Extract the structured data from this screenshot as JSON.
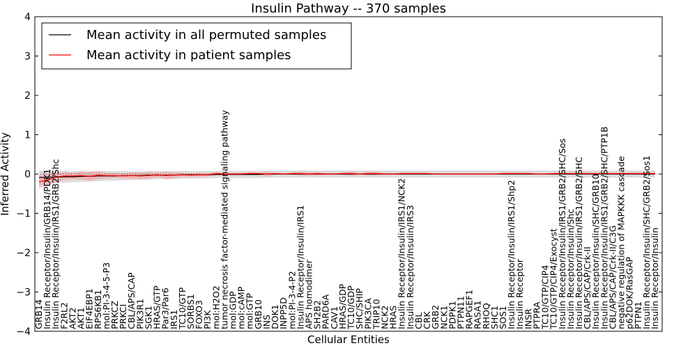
{
  "chart_data": {
    "type": "line",
    "title": "Insulin Pathway -- 370 samples",
    "xlabel": "Cellular Entities",
    "ylabel": "Inferred Activity",
    "ylim": [
      -4,
      4
    ],
    "yticks": [
      4,
      3,
      2,
      1,
      0,
      -1,
      -2,
      -3,
      -4
    ],
    "legend_position": "upper-left",
    "legend": [
      {
        "label": "Mean activity in all permuted samples",
        "color": "#000000"
      },
      {
        "label": "Mean activity in patient samples",
        "color": "#ff0000"
      }
    ],
    "categories": [
      "GRB14",
      "Insulin Receptor/Insulin/GRB14/PDK1",
      "Insulin Receptor/Insulin/IRS1/GRB2/Shc",
      "F2RL2",
      "AKT2",
      "AKT1",
      "EIF4EBP1",
      "RPS6KB1",
      "mol:PI-3-4-5-P3",
      "PRKCZ",
      "PRKCI",
      "CBL/APS/CAP",
      "PIK3R1",
      "SGK1",
      "HRAS/GTP",
      "Par3/Par6",
      "IRS1",
      "TC10/GTP",
      "SORBS1",
      "FOXO3",
      "PI3K",
      "mol:H2O2",
      "tumor necrosis factor-mediated signaling pathway",
      "mol:GDP",
      "mol:cAMP",
      "mol:GTP",
      "GRB10",
      "INS",
      "DOK1",
      "INPP5D",
      "mol:PI-3-4-P2",
      "Insulin Receptor/Insulin/IRS1",
      "APS homodimer",
      "SH2B2",
      "PARD6A",
      "CAV1",
      "HRAS/GDP",
      "TC10/GDP",
      "SHC/SHIP",
      "PIK3CA",
      "TRIP10",
      "NCK2",
      "HRAS",
      "Insulin Receptor/Insulin/IRS1/NCK2",
      "Insulin Receptor/Insulin/IRS3",
      "CBL",
      "CRK",
      "GRB2",
      "NCK1",
      "PDPK1",
      "PTPN11",
      "RAPGEF1",
      "RASA1",
      "RHOQ",
      "SHC1",
      "SOS1",
      "Insulin Receptor/Insulin/IRS1/Shp2",
      "Insulin Receptor",
      "INSR",
      "PTPRA",
      "TC10/GTP/CIP4",
      "TC10/GTP/CIP4/Exocyst",
      "Insulin Receptor/Insulin/IRS1/GRB2/SHC/Sos",
      "Insulin Receptor/Insulin/Shc",
      "Insulin Receptor/Insulin/IRS1/GRB2/SHC",
      "CBL/APS/CAP/Crk-II",
      "Insulin Receptor/Insulin/SHC/GRB10",
      "Insulin Receptor/Insulin/IRS1/GRB2/SHC/PTP1B",
      "CBL/APS/CAP/Crk-II/C3G",
      "negative regulation of MAPKKK cascade",
      "p62DOK/RasGAP",
      "PTPN1",
      "Insulin Receptor/Insulin/SHC/GRB2/Sos1",
      "Insulin Receptor/Insulin"
    ],
    "series": [
      {
        "name": "Mean activity in all permuted samples",
        "color": "#000000",
        "values": [
          -0.09,
          -0.08,
          -0.08,
          -0.07,
          -0.07,
          -0.06,
          -0.06,
          -0.05,
          -0.05,
          -0.05,
          -0.04,
          -0.04,
          -0.04,
          -0.03,
          -0.03,
          -0.03,
          -0.03,
          -0.02,
          -0.02,
          -0.02,
          -0.02,
          -0.01,
          -0.01,
          -0.01,
          -0.01,
          -0.01,
          -0.01,
          0.0,
          0.0,
          0.0,
          0.0,
          0.0,
          0.0,
          0.0,
          0.0,
          0.0,
          0.0,
          0.0,
          0.0,
          0.0,
          0.0,
          0.0,
          0.0,
          0.0,
          0.0,
          0.0,
          0.0,
          0.0,
          0.0,
          0.0,
          0.0,
          0.0,
          0.0,
          0.0,
          0.0,
          0.0,
          0.0,
          0.0,
          0.0,
          0.0,
          0.0,
          0.0,
          0.0,
          0.0,
          0.0,
          0.0,
          0.0,
          0.0,
          0.0,
          0.0,
          0.0,
          0.0,
          0.0,
          0.0
        ],
        "std": [
          0.18,
          0.16,
          0.15,
          0.15,
          0.14,
          0.14,
          0.13,
          0.13,
          0.12,
          0.12,
          0.12,
          0.11,
          0.11,
          0.11,
          0.1,
          0.1,
          0.1,
          0.1,
          0.1,
          0.09,
          0.09,
          0.09,
          0.09,
          0.09,
          0.09,
          0.09,
          0.09,
          0.09,
          0.09,
          0.09,
          0.09,
          0.09,
          0.09,
          0.09,
          0.09,
          0.09,
          0.09,
          0.09,
          0.09,
          0.09,
          0.09,
          0.09,
          0.09,
          0.09,
          0.09,
          0.09,
          0.09,
          0.09,
          0.09,
          0.09,
          0.09,
          0.09,
          0.09,
          0.09,
          0.09,
          0.09,
          0.09,
          0.09,
          0.09,
          0.09,
          0.09,
          0.09,
          0.09,
          0.09,
          0.09,
          0.09,
          0.09,
          0.09,
          0.09,
          0.09,
          0.09,
          0.09,
          0.09,
          0.09
        ]
      },
      {
        "name": "Mean activity in patient samples",
        "color": "#ff0000",
        "values": [
          -0.2,
          -0.15,
          -0.08,
          -0.05,
          -0.05,
          -0.04,
          -0.06,
          -0.03,
          -0.04,
          -0.04,
          -0.05,
          -0.04,
          -0.05,
          -0.04,
          -0.02,
          -0.04,
          -0.03,
          -0.02,
          -0.03,
          -0.02,
          -0.02,
          0.01,
          0.0,
          0.0,
          0.0,
          0.01,
          0.01,
          0.0,
          0.01,
          0.0,
          0.01,
          0.01,
          0.0,
          0.01,
          0.0,
          0.0,
          0.01,
          0.01,
          0.0,
          0.01,
          0.01,
          0.0,
          0.0,
          0.01,
          0.01,
          0.01,
          0.01,
          0.0,
          0.0,
          0.0,
          0.0,
          0.0,
          0.0,
          0.0,
          0.0,
          0.01,
          0.01,
          0.01,
          0.01,
          0.0,
          0.0,
          0.01,
          0.01,
          0.01,
          0.01,
          0.01,
          0.01,
          0.01,
          0.01,
          0.01,
          0.01,
          0.01,
          0.01,
          0.01
        ],
        "std": [
          0.16,
          0.15,
          0.13,
          0.1,
          0.08,
          0.1,
          0.12,
          0.1,
          0.08,
          0.06,
          0.07,
          0.08,
          0.08,
          0.09,
          0.06,
          0.1,
          0.07,
          0.06,
          0.05,
          0.05,
          0.04,
          0.05,
          0.03,
          0.03,
          0.03,
          0.04,
          0.02,
          0.07,
          0.02,
          0.02,
          0.03,
          0.05,
          0.04,
          0.04,
          0.03,
          0.02,
          0.03,
          0.06,
          0.02,
          0.05,
          0.04,
          0.03,
          0.02,
          0.03,
          0.03,
          0.02,
          0.02,
          0.02,
          0.02,
          0.02,
          0.02,
          0.02,
          0.02,
          0.02,
          0.02,
          0.02,
          0.03,
          0.02,
          0.02,
          0.02,
          0.02,
          0.02,
          0.03,
          0.03,
          0.02,
          0.02,
          0.02,
          0.02,
          0.02,
          0.02,
          0.02,
          0.02,
          0.03,
          0.03
        ]
      }
    ],
    "zero_reference_line": 0
  }
}
